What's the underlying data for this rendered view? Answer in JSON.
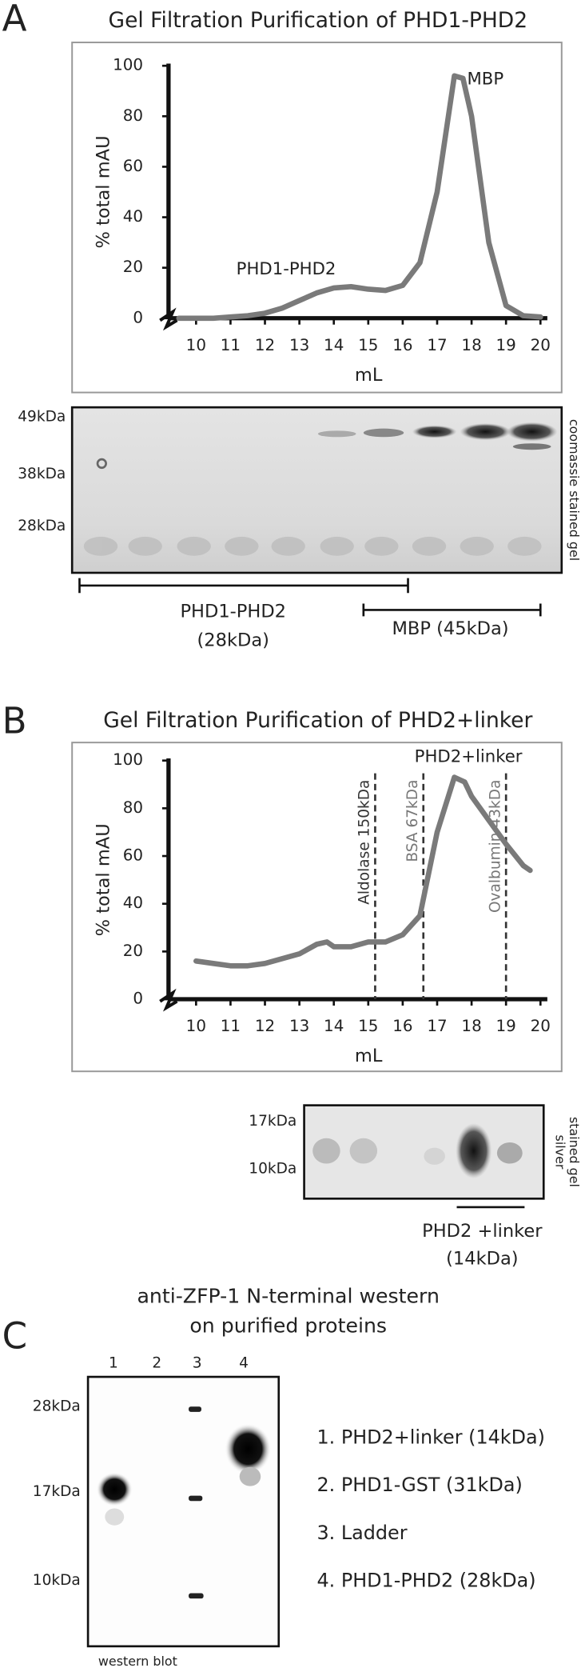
{
  "chart_data": [
    {
      "type": "line",
      "title": "Gel Filtration Purification of PHD1-PHD2",
      "x_label": "mL",
      "y_label": "% total mAU",
      "x": [
        9.5,
        10,
        10.5,
        11,
        11.5,
        12,
        12.5,
        13,
        13.5,
        14,
        14.5,
        15,
        15.5,
        16,
        16.5,
        17,
        17.5,
        17.75,
        18,
        18.5,
        19,
        19.5,
        20
      ],
      "series": [
        {
          "name": "PHD1-PHD2",
          "color": "#7a7a7a",
          "values": [
            0,
            0,
            0,
            0.5,
            1,
            2,
            4,
            7,
            10,
            12,
            12.5,
            11.5,
            11,
            13,
            22,
            50,
            96,
            95,
            80,
            30,
            5,
            1,
            0.5
          ]
        }
      ],
      "annotations": [
        "PHD1-PHD2",
        "MBP"
      ],
      "xlim": [
        9.2,
        20.2
      ],
      "ylim": [
        0,
        100
      ],
      "xticks": [
        10,
        11,
        12,
        13,
        14,
        15,
        16,
        17,
        18,
        19,
        20
      ],
      "yticks": [
        0,
        20,
        40,
        60,
        80,
        100
      ]
    },
    {
      "type": "line",
      "title": "Gel Filtration Purification of PHD2+linker",
      "x_label": "mL",
      "y_label": "% total mAU",
      "x": [
        10,
        10.5,
        11,
        11.5,
        12,
        12.5,
        13,
        13.5,
        13.8,
        14,
        14.5,
        15,
        15.5,
        16,
        16.5,
        17,
        17.5,
        17.8,
        18,
        18.5,
        19,
        19.5,
        19.7
      ],
      "series": [
        {
          "name": "PHD2+linker",
          "color": "#7a7a7a",
          "values": [
            16,
            15,
            14,
            14,
            15,
            17,
            19,
            23,
            24,
            22,
            22,
            24,
            24,
            27,
            35,
            70,
            93,
            91,
            85,
            75,
            65,
            56,
            54
          ]
        }
      ],
      "annotations": [
        "PHD2+linker"
      ],
      "markers": [
        {
          "label": "Aldolase 150kDa",
          "x": 15.2
        },
        {
          "label": "BSA 67kDa",
          "x": 16.6
        },
        {
          "label": "Ovalbumin 43kDa",
          "x": 19
        }
      ],
      "xlim": [
        9.2,
        20.2
      ],
      "ylim": [
        0,
        100
      ],
      "xticks": [
        10,
        11,
        12,
        13,
        14,
        15,
        16,
        17,
        18,
        19,
        20
      ],
      "yticks": [
        0,
        20,
        40,
        60,
        80,
        100
      ]
    }
  ],
  "panel_labels": [
    "A",
    "B",
    "C"
  ],
  "gel_a": {
    "mw": [
      "49kDa",
      "38kDa",
      "28kDa"
    ],
    "stain": "coomassie stained gel",
    "bracket_1": [
      "PHD1-PHD2",
      "(28kDa)"
    ],
    "bracket_2": "MBP (45kDa)"
  },
  "gel_b": {
    "mw": [
      "17kDa",
      "10kDa"
    ],
    "stain": [
      "silver",
      "stained gel"
    ],
    "bracket": [
      "PHD2 +linker",
      "(14kDa)"
    ]
  },
  "western": {
    "title": [
      "anti-ZFP-1 N-terminal western",
      "on purified proteins"
    ],
    "lanes": [
      "1",
      "2",
      "3",
      "4"
    ],
    "mw": [
      "28kDa",
      "17kDa",
      "10kDa"
    ],
    "legend": [
      "1. PHD2+linker (14kDa)",
      "2. PHD1-GST (31kDa)",
      "3. Ladder",
      "4. PHD1-PHD2 (28kDa)"
    ],
    "caption": "western blot"
  }
}
